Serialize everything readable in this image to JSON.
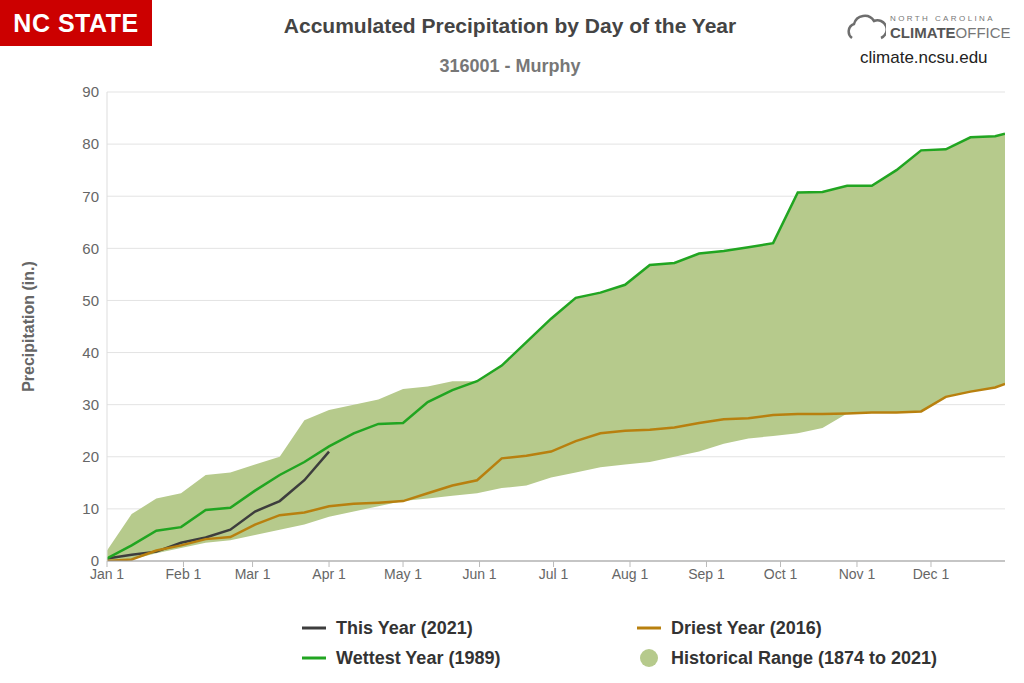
{
  "chart_data": {
    "type": "line",
    "title": "Accumulated Precipitation by Day of the Year",
    "subtitle": "316001 - Murphy",
    "y_label": "Precipitation (in.)",
    "annotations": [
      "NC STATE",
      "NORTH CAROLINA",
      "CLIMATE",
      "OFFICE",
      "climate.ncsu.edu"
    ],
    "x": [
      1,
      11,
      21,
      31,
      41,
      51,
      61,
      71,
      81,
      91,
      101,
      111,
      121,
      131,
      141,
      151,
      161,
      171,
      181,
      191,
      201,
      211,
      221,
      231,
      241,
      251,
      261,
      271,
      281,
      291,
      301,
      311,
      321,
      331,
      341,
      351,
      361,
      365
    ],
    "xlim": [
      1,
      365
    ],
    "xticks": [
      {
        "value": 1,
        "label": "Jan 1"
      },
      {
        "value": 32,
        "label": "Feb 1"
      },
      {
        "value": 60,
        "label": "Mar 1"
      },
      {
        "value": 91,
        "label": "Apr 1"
      },
      {
        "value": 121,
        "label": "May 1"
      },
      {
        "value": 152,
        "label": "Jun 1"
      },
      {
        "value": 182,
        "label": "Jul 1"
      },
      {
        "value": 213,
        "label": "Aug 1"
      },
      {
        "value": 244,
        "label": "Sep 1"
      },
      {
        "value": 274,
        "label": "Oct 1"
      },
      {
        "value": 305,
        "label": "Nov 1"
      },
      {
        "value": 335,
        "label": "Dec 1"
      }
    ],
    "ylim": [
      0,
      90
    ],
    "yticks": [
      0,
      10,
      20,
      30,
      40,
      50,
      60,
      70,
      80,
      90
    ],
    "grid": true,
    "series": [
      {
        "name": "This Year (2021)",
        "color": "#3d3d3d",
        "values": [
          0.5,
          1.2,
          1.8,
          3.5,
          4.5,
          6,
          9.5,
          11.5,
          15.5,
          21,
          null,
          null,
          null,
          null,
          null,
          null,
          null,
          null,
          null,
          null,
          null,
          null,
          null,
          null,
          null,
          null,
          null,
          null,
          null,
          null,
          null,
          null,
          null,
          null,
          null,
          null,
          null,
          null
        ]
      },
      {
        "name": "Driest Year (2016)",
        "color": "#b8800f",
        "values": [
          0,
          0.3,
          2,
          3,
          4.2,
          4.6,
          7,
          8.8,
          9.3,
          10.5,
          11,
          11.2,
          11.5,
          13,
          14.5,
          15.5,
          19.7,
          20.2,
          21,
          23,
          24.5,
          25,
          25.2,
          25.6,
          26.5,
          27.2,
          27.4,
          28,
          28.2,
          28.2,
          28.3,
          28.5,
          28.5,
          28.7,
          31.5,
          32.5,
          33.3,
          34
        ]
      },
      {
        "name": "Wettest Year (1989)",
        "color": "#21a521",
        "values": [
          0.5,
          3,
          5.8,
          6.5,
          9.8,
          10.2,
          13.5,
          16.5,
          19,
          22,
          24.5,
          26.3,
          26.5,
          30.5,
          32.8,
          34.5,
          37.5,
          42,
          46.5,
          50.5,
          51.5,
          53,
          56.8,
          57.2,
          59,
          59.5,
          60.2,
          61,
          70.7,
          70.8,
          72,
          72,
          75,
          78.8,
          79,
          81.3,
          81.5,
          82
        ]
      },
      {
        "name": "Historical Range (1874 to 2021)",
        "type": "range",
        "color": "#b6ca8c",
        "low": [
          0,
          0.3,
          1.5,
          2.5,
          3.5,
          4,
          5,
          6,
          7,
          8.5,
          9.5,
          10.5,
          11.5,
          12,
          12.5,
          13,
          14,
          14.5,
          16,
          17,
          18,
          18.5,
          19,
          20,
          21,
          22.5,
          23.5,
          24,
          24.5,
          25.5,
          28.3,
          28.5,
          28.5,
          28.7,
          31.5,
          32.5,
          33.3,
          34
        ],
        "high": [
          2,
          9,
          12,
          13,
          16.5,
          17,
          18.5,
          20,
          27,
          29,
          30,
          31,
          33,
          33.5,
          34.5,
          34.5,
          37.5,
          42,
          46.5,
          50.5,
          51.5,
          53,
          56.8,
          57.2,
          59,
          59.5,
          60.2,
          61,
          70.7,
          70.8,
          72,
          72,
          75,
          78.8,
          79,
          81.3,
          81.5,
          82
        ]
      }
    ]
  }
}
